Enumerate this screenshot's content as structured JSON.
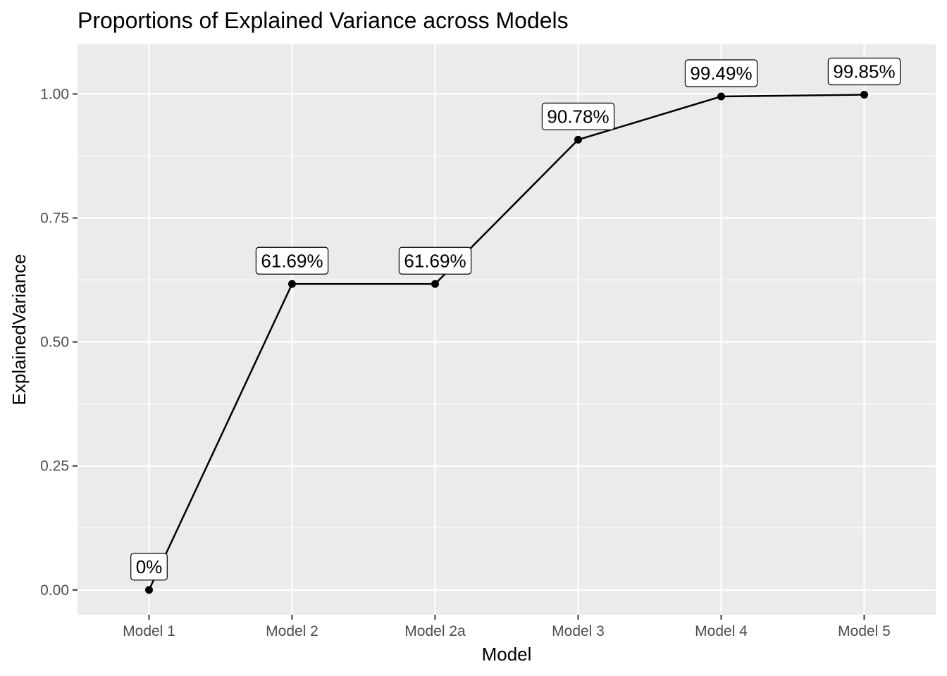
{
  "chart_data": {
    "type": "line",
    "title": "Proportions of Explained Variance across Models",
    "xlabel": "Model",
    "ylabel": "ExplainedVariance",
    "categories": [
      "Model 1",
      "Model 2",
      "Model 2a",
      "Model 3",
      "Model 4",
      "Model 5"
    ],
    "values": [
      0.0,
      0.6169,
      0.6169,
      0.9078,
      0.9949,
      0.9985
    ],
    "data_labels": [
      "0%",
      "61.69%",
      "61.69%",
      "90.78%",
      "99.49%",
      "99.85%"
    ],
    "ylim": [
      -0.05,
      1.1
    ],
    "yticks": [
      0.0,
      0.25,
      0.5,
      0.75,
      1.0
    ],
    "ytick_labels": [
      "0.00",
      "0.25",
      "0.50",
      "0.75",
      "1.00"
    ],
    "grid": true,
    "legend": "none",
    "colors": {
      "panel_background": "#ebebeb",
      "gridline": "#ffffff",
      "line": "#000000",
      "point": "#000000",
      "tick_text": "#4d4d4d"
    }
  }
}
